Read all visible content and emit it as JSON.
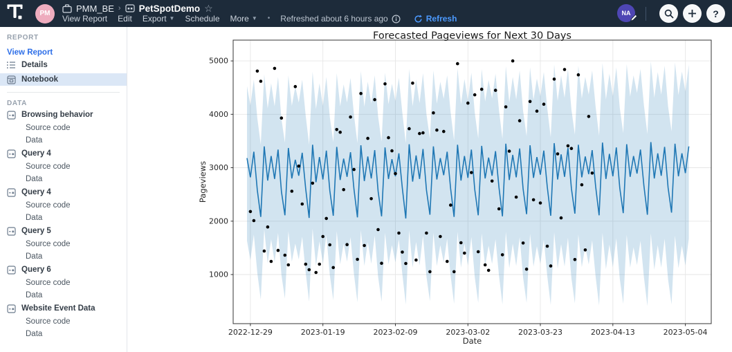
{
  "topbar": {
    "workspace_avatar": "PM",
    "breadcrumb": {
      "collection": "PMM_BE",
      "separator": "›",
      "report": "PetSpotDemo",
      "star_icon": "star-outline"
    },
    "menu": [
      {
        "label": "View Report",
        "caret": false
      },
      {
        "label": "Edit",
        "caret": false
      },
      {
        "label": "Export",
        "caret": true
      },
      {
        "label": "Schedule",
        "caret": false
      },
      {
        "label": "More",
        "caret": true
      }
    ],
    "dot_separator": "•",
    "refreshed_text": "Refreshed about 6 hours ago",
    "refresh_label": "Refresh",
    "user_avatar": "NA",
    "colors": {
      "bar_bg": "#1d2b3a",
      "refresh_blue": "#4c9aff"
    }
  },
  "sidebar": {
    "report_header": "REPORT",
    "view_report_label": "View Report",
    "report_items": [
      {
        "label": "Details",
        "icon": "list-icon",
        "selected": false
      },
      {
        "label": "Notebook",
        "icon": "notebook-icon",
        "selected": true
      }
    ],
    "data_header": "DATA",
    "datasets": [
      {
        "label": "Browsing behavior",
        "children": [
          "Source code",
          "Data"
        ]
      },
      {
        "label": "Query 4",
        "children": [
          "Source code",
          "Data"
        ]
      },
      {
        "label": "Query 4",
        "children": [
          "Source code",
          "Data"
        ]
      },
      {
        "label": "Query 5",
        "children": [
          "Source code",
          "Data"
        ]
      },
      {
        "label": "Query 6",
        "children": [
          "Source code",
          "Data"
        ]
      },
      {
        "label": "Website Event Data",
        "children": [
          "Source code",
          "Data"
        ]
      }
    ]
  },
  "chart_data": {
    "type": "line",
    "title": "Forecasted Pageviews for Next 30 Days",
    "xlabel": "Date",
    "ylabel": "Pageviews",
    "grid": true,
    "legend": "none",
    "epoch_day0": "2022-12-29",
    "x_tick_labels": [
      "2022-12-29",
      "2023-01-19",
      "2023-02-09",
      "2023-03-02",
      "2023-03-23",
      "2023-04-13",
      "2023-05-04"
    ],
    "x_tick_days": [
      0,
      21,
      42,
      63,
      84,
      105,
      126
    ],
    "y_ticks": [
      1000,
      2000,
      3000,
      4000,
      5000
    ],
    "xlim_days": [
      -5,
      133.5
    ],
    "ylim": [
      80,
      5390
    ],
    "line_color": "#1f77b4",
    "band_fill": "rgba(31,119,180,0.2)",
    "scatter_color": "#000000",
    "grid_color": "#e6e6e6",
    "forecast": {
      "name": "forecast (yhat) with confidence band, daily from 2022-12-28 to 2023-05-05",
      "start_day": -1,
      "yhat": [
        3180,
        2820,
        3300,
        2580,
        2080,
        3400,
        2760,
        3220,
        2790,
        3340,
        2550,
        2110,
        3370,
        2800,
        3150,
        2850,
        3280,
        2610,
        2060,
        3430,
        2730,
        3200,
        2780,
        3320,
        2570,
        2100,
        3390,
        2770,
        3170,
        2830,
        3290,
        2600,
        2070,
        3420,
        2750,
        3210,
        2800,
        3330,
        2560,
        2090,
        3380,
        2790,
        3160,
        2840,
        3270,
        2620,
        2050,
        3440,
        2740,
        3230,
        2790,
        3350,
        2580,
        2120,
        3400,
        2780,
        3180,
        2860,
        3300,
        2610,
        2080,
        3430,
        2760,
        3220,
        2810,
        3340,
        2590,
        2110,
        3410,
        2800,
        3190,
        2850,
        3310,
        2630,
        2090,
        3450,
        2770,
        3240,
        2820,
        3360,
        2600,
        2130,
        3420,
        2810,
        3200,
        2870,
        3320,
        2640,
        2100,
        3460,
        2780,
        3250,
        2830,
        3370,
        2610,
        2140,
        3430,
        2820,
        3210,
        2880,
        3330,
        2650,
        2110,
        3470,
        2790,
        3260,
        2840,
        3380,
        2620,
        2150,
        3440,
        2830,
        3220,
        2890,
        3340,
        2660,
        2120,
        3480,
        2800,
        3270,
        2850,
        3390,
        2630,
        2160,
        3450,
        2840,
        3270,
        2900,
        3400
      ],
      "yhat_upper": [
        4530,
        4170,
        4650,
        3930,
        3430,
        4750,
        4110,
        4580,
        4150,
        4700,
        3910,
        3470,
        4730,
        4160,
        4520,
        4220,
        4650,
        3980,
        3430,
        4800,
        4100,
        4580,
        4160,
        4700,
        3950,
        3480,
        4770,
        4150,
        4560,
        4220,
        4680,
        3990,
        3460,
        4810,
        4140,
        4610,
        4200,
        4730,
        3960,
        3490,
        4780,
        4190,
        4570,
        4250,
        4680,
        4030,
        3460,
        4850,
        4150,
        4650,
        4210,
        4770,
        4000,
        3540,
        4820,
        4200,
        4610,
        4290,
        4730,
        4040,
        3510,
        4860,
        4190,
        4660,
        4250,
        4780,
        4030,
        3550,
        4850,
        4240,
        4640,
        4300,
        4760,
        4080,
        3540,
        4900,
        4220,
        4700,
        4280,
        4820,
        4060,
        3590,
        4880,
        4270,
        4670,
        4340,
        4790,
        4110,
        3570,
        4930,
        4250,
        4730,
        4310,
        4850,
        4090,
        3620,
        4910,
        4300,
        4700,
        4370,
        4820,
        4140,
        3600,
        4960,
        4280,
        4760,
        4340,
        4880,
        4120,
        3650,
        4940,
        4330,
        4730,
        4400,
        4850,
        4170,
        3630,
        4990,
        4310,
        4790,
        4370,
        4910,
        4150,
        3680,
        4970,
        4360,
        4800,
        4430,
        4930
      ],
      "yhat_lower": [
        1630,
        1270,
        1750,
        1030,
        530,
        1850,
        1210,
        1660,
        1230,
        1780,
        990,
        550,
        1810,
        1240,
        1580,
        1280,
        1710,
        1040,
        490,
        1860,
        1160,
        1620,
        1200,
        1740,
        990,
        520,
        1810,
        1190,
        1580,
        1240,
        1700,
        1010,
        480,
        1830,
        1160,
        1610,
        1200,
        1730,
        960,
        490,
        1780,
        1190,
        1550,
        1230,
        1660,
        1010,
        440,
        1830,
        1130,
        1610,
        1170,
        1730,
        960,
        500,
        1780,
        1160,
        1550,
        1230,
        1670,
        980,
        450,
        1800,
        1130,
        1580,
        1170,
        1700,
        950,
        470,
        1770,
        1160,
        1540,
        1200,
        1660,
        980,
        440,
        1800,
        1120,
        1580,
        1160,
        1700,
        940,
        470,
        1760,
        1150,
        1530,
        1200,
        1650,
        970,
        430,
        1790,
        1110,
        1570,
        1150,
        1690,
        930,
        460,
        1750,
        1140,
        1520,
        1190,
        1640,
        960,
        420,
        1780,
        1100,
        1560,
        1140,
        1680,
        920,
        450,
        1740,
        1130,
        1510,
        1180,
        1630,
        950,
        410,
        1770,
        1090,
        1550,
        1130,
        1670,
        910,
        440,
        1730,
        1120,
        1540,
        1170,
        1670
      ]
    },
    "actuals": {
      "name": "actual daily pageviews (black dots), day offset from 2022-12-29",
      "points": [
        [
          0,
          2180
        ],
        [
          1,
          2010
        ],
        [
          2,
          4810
        ],
        [
          3,
          4620
        ],
        [
          4,
          1440
        ],
        [
          5,
          1890
        ],
        [
          6,
          1246
        ],
        [
          7,
          4860
        ],
        [
          8,
          1452
        ],
        [
          9,
          3930
        ],
        [
          10,
          1362
        ],
        [
          11,
          1181
        ],
        [
          12,
          2560
        ],
        [
          13,
          4520
        ],
        [
          14,
          3030
        ],
        [
          15,
          2320
        ],
        [
          16,
          1194
        ],
        [
          17,
          1090
        ],
        [
          18,
          2710
        ],
        [
          19,
          1039
        ],
        [
          20,
          1194
        ],
        [
          21,
          1712
        ],
        [
          22,
          2050
        ],
        [
          23,
          1556
        ],
        [
          24,
          1130
        ],
        [
          25,
          3715
        ],
        [
          26,
          3665
        ],
        [
          27,
          2590
        ],
        [
          28,
          1560
        ],
        [
          29,
          3950
        ],
        [
          30,
          2967
        ],
        [
          31,
          1285
        ],
        [
          32,
          4390
        ],
        [
          33,
          1543
        ],
        [
          34,
          3550
        ],
        [
          35,
          2420
        ],
        [
          36,
          4275
        ],
        [
          37,
          1841
        ],
        [
          38,
          1210
        ],
        [
          39,
          4570
        ],
        [
          40,
          3563
        ],
        [
          41,
          3317
        ],
        [
          42,
          2890
        ],
        [
          43,
          1776
        ],
        [
          44,
          1420
        ],
        [
          45,
          1207
        ],
        [
          46,
          3731
        ],
        [
          47,
          4585
        ],
        [
          48,
          1272
        ],
        [
          49,
          3640
        ],
        [
          50,
          3653
        ],
        [
          51,
          1776
        ],
        [
          52,
          1052
        ],
        [
          53,
          4028
        ],
        [
          54,
          3705
        ],
        [
          55,
          1712
        ],
        [
          56,
          3679
        ],
        [
          57,
          1246
        ],
        [
          58,
          2300
        ],
        [
          59,
          1052
        ],
        [
          60,
          4948
        ],
        [
          61,
          1595
        ],
        [
          62,
          1401
        ],
        [
          63,
          4210
        ],
        [
          64,
          2910
        ],
        [
          65,
          4365
        ],
        [
          66,
          1427
        ],
        [
          67,
          4469
        ],
        [
          68,
          1181
        ],
        [
          69,
          1078
        ],
        [
          70,
          2750
        ],
        [
          71,
          4450
        ],
        [
          72,
          2230
        ],
        [
          73,
          1370
        ],
        [
          74,
          4140
        ],
        [
          75,
          3310
        ],
        [
          76,
          5000
        ],
        [
          77,
          2450
        ],
        [
          78,
          3880
        ],
        [
          79,
          1590
        ],
        [
          80,
          1100
        ],
        [
          81,
          4240
        ],
        [
          82,
          2400
        ],
        [
          83,
          4060
        ],
        [
          84,
          2340
        ],
        [
          85,
          4190
        ],
        [
          86,
          1530
        ],
        [
          87,
          1160
        ],
        [
          88,
          4660
        ],
        [
          89,
          3260
        ],
        [
          90,
          2060
        ],
        [
          91,
          4840
        ],
        [
          92,
          3410
        ],
        [
          93,
          3360
        ],
        [
          94,
          1280
        ],
        [
          95,
          4740
        ],
        [
          96,
          2680
        ],
        [
          97,
          1460
        ],
        [
          98,
          3960
        ],
        [
          99,
          2900
        ]
      ]
    }
  }
}
